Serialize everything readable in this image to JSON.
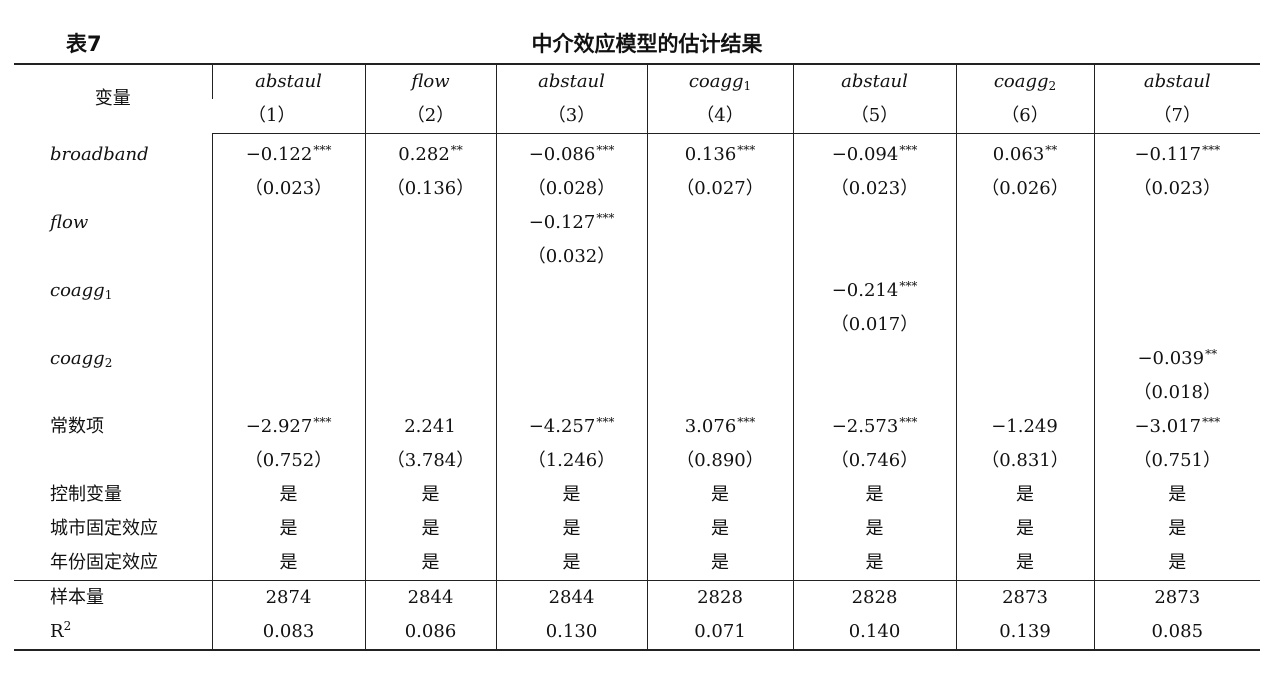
{
  "header": {
    "table_label": "表7",
    "title": "中介效应模型的估计结果"
  },
  "columns": [
    {
      "var": "abstaul",
      "sub": "",
      "num": "（1）"
    },
    {
      "var": "flow",
      "sub": "",
      "num": "（2）"
    },
    {
      "var": "abstaul",
      "sub": "",
      "num": "（3）"
    },
    {
      "var": "coagg",
      "sub": "1",
      "num": "（4）"
    },
    {
      "var": "abstaul",
      "sub": "",
      "num": "（5）"
    },
    {
      "var": "coagg",
      "sub": "2",
      "num": "（6）"
    },
    {
      "var": "abstaul",
      "sub": "",
      "num": "（7）"
    }
  ],
  "var_header": "变量",
  "rows": {
    "broadband": {
      "label": "broadband",
      "coef": [
        {
          "v": "−0.122",
          "s": "***"
        },
        {
          "v": "0.282",
          "s": "**"
        },
        {
          "v": "−0.086",
          "s": "***"
        },
        {
          "v": "0.136",
          "s": "***"
        },
        {
          "v": "−0.094",
          "s": "***"
        },
        {
          "v": "0.063",
          "s": "**"
        },
        {
          "v": "−0.117",
          "s": "***"
        }
      ],
      "se": [
        "（0.023）",
        "（0.136）",
        "（0.028）",
        "（0.027）",
        "（0.023）",
        "（0.026）",
        "（0.023）"
      ]
    },
    "flow": {
      "label": "flow",
      "coef": {
        "v": "−0.127",
        "s": "***"
      },
      "se": "（0.032）"
    },
    "coagg1": {
      "label": "coagg",
      "sub": "1",
      "coef": {
        "v": "−0.214",
        "s": "***"
      },
      "se": "（0.017）"
    },
    "coagg2": {
      "label": "coagg",
      "sub": "2",
      "coef": {
        "v": "−0.039",
        "s": "**"
      },
      "se": "（0.018）"
    },
    "constant": {
      "label": "常数项",
      "coef": [
        {
          "v": "−2.927",
          "s": "***"
        },
        {
          "v": "2.241",
          "s": ""
        },
        {
          "v": "−4.257",
          "s": "***"
        },
        {
          "v": "3.076",
          "s": "***"
        },
        {
          "v": "−2.573",
          "s": "***"
        },
        {
          "v": "−1.249",
          "s": ""
        },
        {
          "v": "−3.017",
          "s": "***"
        }
      ],
      "se": [
        "（0.752）",
        "（3.784）",
        "（1.246）",
        "（0.890）",
        "（0.746）",
        "（0.831）",
        "（0.751）"
      ]
    },
    "controls": {
      "label": "控制变量",
      "values": [
        "是",
        "是",
        "是",
        "是",
        "是",
        "是",
        "是"
      ]
    },
    "city_fe": {
      "label": "城市固定效应",
      "values": [
        "是",
        "是",
        "是",
        "是",
        "是",
        "是",
        "是"
      ]
    },
    "year_fe": {
      "label": "年份固定效应",
      "values": [
        "是",
        "是",
        "是",
        "是",
        "是",
        "是",
        "是"
      ]
    },
    "n": {
      "label": "样本量",
      "values": [
        "2874",
        "2844",
        "2844",
        "2828",
        "2828",
        "2873",
        "2873"
      ]
    },
    "r2": {
      "label": "R",
      "sup": "2",
      "values": [
        "0.083",
        "0.086",
        "0.130",
        "0.071",
        "0.140",
        "0.139",
        "0.085"
      ]
    }
  }
}
